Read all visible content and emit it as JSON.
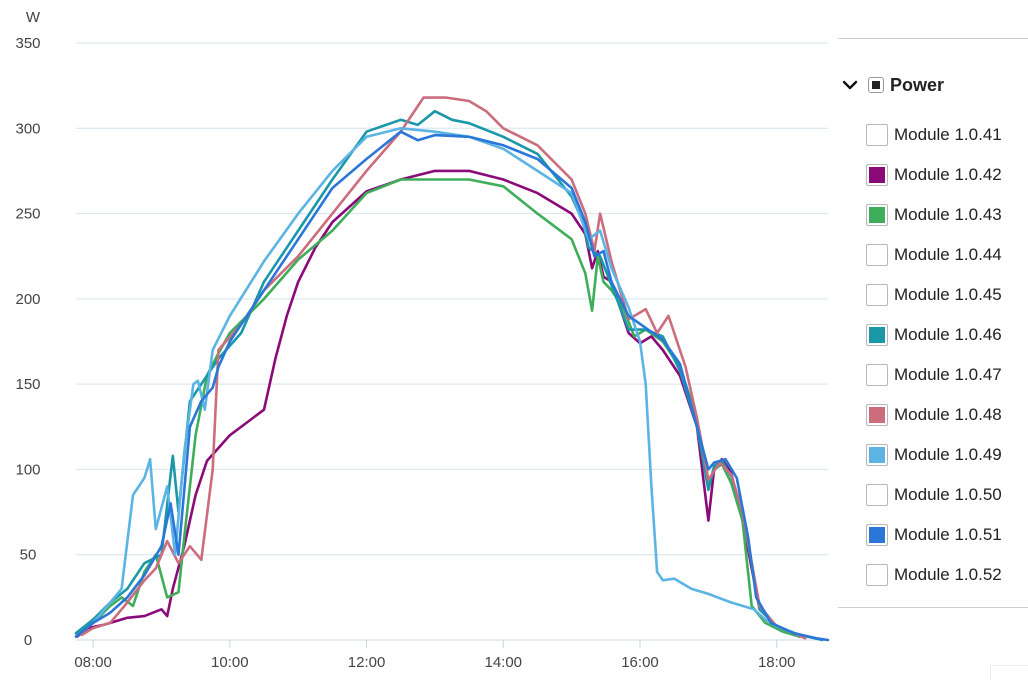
{
  "chart_data": {
    "type": "line",
    "ylabel": "W",
    "ylim": [
      0,
      350
    ],
    "y_ticks": [
      "0",
      "50",
      "100",
      "150",
      "200",
      "250",
      "300",
      "350"
    ],
    "xlim": [
      "07:45",
      "18:45"
    ],
    "x_ticks": [
      "08:00",
      "10:00",
      "12:00",
      "14:00",
      "16:00",
      "18:00"
    ],
    "grid": "horizontal",
    "legend_position": "right",
    "series": [
      {
        "name": "Module 1.0.42",
        "color": "#8b0a7a",
        "points": [
          [
            "07:46",
            2
          ],
          [
            "07:55",
            7
          ],
          [
            "08:10",
            9
          ],
          [
            "08:30",
            13
          ],
          [
            "08:45",
            14
          ],
          [
            "09:00",
            18
          ],
          [
            "09:05",
            14
          ],
          [
            "09:10",
            30
          ],
          [
            "09:20",
            55
          ],
          [
            "09:30",
            85
          ],
          [
            "09:40",
            105
          ],
          [
            "10:00",
            120
          ],
          [
            "10:30",
            135
          ],
          [
            "10:40",
            165
          ],
          [
            "10:50",
            190
          ],
          [
            "11:00",
            210
          ],
          [
            "11:15",
            230
          ],
          [
            "11:30",
            245
          ],
          [
            "12:00",
            263
          ],
          [
            "12:30",
            270
          ],
          [
            "13:00",
            275
          ],
          [
            "13:30",
            275
          ],
          [
            "14:00",
            270
          ],
          [
            "14:30",
            262
          ],
          [
            "15:00",
            250
          ],
          [
            "15:12",
            238
          ],
          [
            "15:18",
            218
          ],
          [
            "15:23",
            228
          ],
          [
            "15:28",
            213
          ],
          [
            "15:35",
            210
          ],
          [
            "15:50",
            180
          ],
          [
            "16:00",
            174
          ],
          [
            "16:10",
            178
          ],
          [
            "16:20",
            170
          ],
          [
            "16:35",
            155
          ],
          [
            "16:50",
            125
          ],
          [
            "17:00",
            70
          ],
          [
            "17:05",
            100
          ],
          [
            "17:12",
            106
          ],
          [
            "17:20",
            98
          ],
          [
            "17:30",
            70
          ],
          [
            "17:45",
            18
          ],
          [
            "18:00",
            8
          ],
          [
            "18:15",
            4
          ],
          [
            "18:20",
            2
          ]
        ]
      },
      {
        "name": "Module 1.0.43",
        "color": "#3fae5a",
        "points": [
          [
            "07:45",
            4
          ],
          [
            "08:00",
            10
          ],
          [
            "08:15",
            20
          ],
          [
            "08:25",
            25
          ],
          [
            "08:35",
            20
          ],
          [
            "08:45",
            40
          ],
          [
            "08:55",
            50
          ],
          [
            "09:05",
            25
          ],
          [
            "09:15",
            28
          ],
          [
            "09:20",
            60
          ],
          [
            "09:30",
            120
          ],
          [
            "09:40",
            155
          ],
          [
            "09:50",
            168
          ],
          [
            "10:00",
            180
          ],
          [
            "10:30",
            200
          ],
          [
            "11:00",
            223
          ],
          [
            "11:30",
            240
          ],
          [
            "12:00",
            262
          ],
          [
            "12:30",
            270
          ],
          [
            "13:00",
            270
          ],
          [
            "13:30",
            270
          ],
          [
            "14:00",
            266
          ],
          [
            "14:30",
            250
          ],
          [
            "15:00",
            235
          ],
          [
            "15:12",
            215
          ],
          [
            "15:18",
            193
          ],
          [
            "15:23",
            225
          ],
          [
            "15:28",
            210
          ],
          [
            "15:35",
            205
          ],
          [
            "15:45",
            195
          ],
          [
            "15:55",
            178
          ],
          [
            "16:05",
            182
          ],
          [
            "16:20",
            175
          ],
          [
            "16:35",
            160
          ],
          [
            "16:50",
            130
          ],
          [
            "17:00",
            90
          ],
          [
            "17:05",
            100
          ],
          [
            "17:12",
            103
          ],
          [
            "17:20",
            92
          ],
          [
            "17:30",
            70
          ],
          [
            "17:38",
            20
          ],
          [
            "17:50",
            10
          ],
          [
            "18:05",
            5
          ],
          [
            "18:20",
            2
          ]
        ]
      },
      {
        "name": "Module 1.0.46",
        "color": "#1a98a8",
        "points": [
          [
            "07:45",
            4
          ],
          [
            "08:00",
            12
          ],
          [
            "08:15",
            22
          ],
          [
            "08:30",
            30
          ],
          [
            "08:45",
            45
          ],
          [
            "09:00",
            50
          ],
          [
            "09:10",
            108
          ],
          [
            "09:15",
            75
          ],
          [
            "09:25",
            140
          ],
          [
            "09:35",
            150
          ],
          [
            "09:50",
            165
          ],
          [
            "10:10",
            180
          ],
          [
            "10:30",
            210
          ],
          [
            "11:00",
            240
          ],
          [
            "11:30",
            270
          ],
          [
            "12:00",
            298
          ],
          [
            "12:30",
            305
          ],
          [
            "12:45",
            302
          ],
          [
            "13:00",
            310
          ],
          [
            "13:15",
            305
          ],
          [
            "13:30",
            303
          ],
          [
            "14:00",
            295
          ],
          [
            "14:30",
            285
          ],
          [
            "15:00",
            260
          ],
          [
            "15:10",
            245
          ],
          [
            "15:15",
            230
          ],
          [
            "15:25",
            225
          ],
          [
            "15:35",
            208
          ],
          [
            "15:50",
            182
          ],
          [
            "16:05",
            182
          ],
          [
            "16:20",
            178
          ],
          [
            "16:35",
            158
          ],
          [
            "16:50",
            125
          ],
          [
            "17:00",
            88
          ],
          [
            "17:05",
            102
          ],
          [
            "17:12",
            105
          ],
          [
            "17:20",
            96
          ],
          [
            "17:30",
            75
          ],
          [
            "17:45",
            18
          ],
          [
            "18:00",
            8
          ],
          [
            "18:20",
            3
          ],
          [
            "18:40",
            0
          ]
        ]
      },
      {
        "name": "Module 1.0.48",
        "color": "#cc6d7e",
        "points": [
          [
            "07:50",
            3
          ],
          [
            "08:00",
            7
          ],
          [
            "08:15",
            10
          ],
          [
            "08:30",
            22
          ],
          [
            "08:45",
            35
          ],
          [
            "08:55",
            42
          ],
          [
            "09:05",
            58
          ],
          [
            "09:15",
            45
          ],
          [
            "09:25",
            55
          ],
          [
            "09:35",
            47
          ],
          [
            "09:45",
            100
          ],
          [
            "09:50",
            170
          ],
          [
            "10:10",
            185
          ],
          [
            "10:30",
            205
          ],
          [
            "11:00",
            225
          ],
          [
            "11:30",
            250
          ],
          [
            "12:00",
            275
          ],
          [
            "12:30",
            298
          ],
          [
            "12:50",
            318
          ],
          [
            "13:10",
            318
          ],
          [
            "13:30",
            316
          ],
          [
            "13:45",
            310
          ],
          [
            "14:00",
            300
          ],
          [
            "14:30",
            290
          ],
          [
            "15:00",
            270
          ],
          [
            "15:12",
            250
          ],
          [
            "15:20",
            228
          ],
          [
            "15:25",
            250
          ],
          [
            "15:35",
            222
          ],
          [
            "15:50",
            188
          ],
          [
            "16:05",
            194
          ],
          [
            "16:15",
            180
          ],
          [
            "16:25",
            190
          ],
          [
            "16:40",
            160
          ],
          [
            "16:50",
            130
          ],
          [
            "17:00",
            94
          ],
          [
            "17:10",
            104
          ],
          [
            "17:20",
            97
          ],
          [
            "17:30",
            75
          ],
          [
            "17:45",
            20
          ],
          [
            "18:00",
            8
          ],
          [
            "18:15",
            4
          ],
          [
            "18:25",
            1
          ]
        ]
      },
      {
        "name": "Module 1.0.49",
        "color": "#5bb4e3",
        "points": [
          [
            "07:45",
            2
          ],
          [
            "08:00",
            10
          ],
          [
            "08:15",
            22
          ],
          [
            "08:25",
            30
          ],
          [
            "08:35",
            85
          ],
          [
            "08:45",
            95
          ],
          [
            "08:50",
            106
          ],
          [
            "08:55",
            65
          ],
          [
            "09:05",
            90
          ],
          [
            "09:12",
            50
          ],
          [
            "09:20",
            110
          ],
          [
            "09:28",
            150
          ],
          [
            "09:32",
            152
          ],
          [
            "09:38",
            135
          ],
          [
            "09:45",
            170
          ],
          [
            "10:00",
            190
          ],
          [
            "10:30",
            222
          ],
          [
            "11:00",
            250
          ],
          [
            "11:30",
            275
          ],
          [
            "12:00",
            295
          ],
          [
            "12:30",
            300
          ],
          [
            "13:00",
            298
          ],
          [
            "13:30",
            295
          ],
          [
            "14:00",
            288
          ],
          [
            "14:30",
            275
          ],
          [
            "15:00",
            262
          ],
          [
            "15:15",
            235
          ],
          [
            "15:25",
            240
          ],
          [
            "15:35",
            218
          ],
          [
            "15:50",
            195
          ],
          [
            "16:00",
            175
          ],
          [
            "16:05",
            150
          ],
          [
            "16:10",
            90
          ],
          [
            "16:15",
            40
          ],
          [
            "16:20",
            35
          ],
          [
            "16:30",
            36
          ],
          [
            "16:45",
            30
          ],
          [
            "17:00",
            27
          ],
          [
            "17:20",
            22
          ],
          [
            "17:40",
            18
          ],
          [
            "17:50",
            12
          ],
          [
            "18:00",
            8
          ],
          [
            "18:20",
            3
          ]
        ]
      },
      {
        "name": "Module 1.0.51",
        "color": "#2a77d8",
        "points": [
          [
            "07:45",
            2
          ],
          [
            "08:00",
            10
          ],
          [
            "08:15",
            16
          ],
          [
            "08:30",
            25
          ],
          [
            "08:45",
            38
          ],
          [
            "09:00",
            55
          ],
          [
            "09:08",
            80
          ],
          [
            "09:15",
            50
          ],
          [
            "09:25",
            125
          ],
          [
            "09:35",
            140
          ],
          [
            "09:45",
            148
          ],
          [
            "09:50",
            160
          ],
          [
            "10:00",
            175
          ],
          [
            "10:30",
            205
          ],
          [
            "11:00",
            235
          ],
          [
            "11:30",
            265
          ],
          [
            "12:00",
            282
          ],
          [
            "12:30",
            298
          ],
          [
            "12:45",
            293
          ],
          [
            "13:00",
            296
          ],
          [
            "13:30",
            295
          ],
          [
            "14:00",
            290
          ],
          [
            "14:30",
            282
          ],
          [
            "15:00",
            265
          ],
          [
            "15:12",
            245
          ],
          [
            "15:20",
            225
          ],
          [
            "15:28",
            228
          ],
          [
            "15:35",
            210
          ],
          [
            "15:50",
            190
          ],
          [
            "16:05",
            183
          ],
          [
            "16:20",
            176
          ],
          [
            "16:35",
            162
          ],
          [
            "16:50",
            125
          ],
          [
            "17:00",
            100
          ],
          [
            "17:05",
            104
          ],
          [
            "17:15",
            106
          ],
          [
            "17:25",
            95
          ],
          [
            "17:35",
            60
          ],
          [
            "17:42",
            25
          ],
          [
            "17:55",
            10
          ],
          [
            "18:15",
            4
          ],
          [
            "18:35",
            1
          ],
          [
            "18:45",
            0
          ]
        ]
      }
    ]
  },
  "legend": {
    "group_label": "Power",
    "items": [
      {
        "label": "Module 1.0.41",
        "color": ""
      },
      {
        "label": "Module 1.0.42",
        "color": "#8b0a7a"
      },
      {
        "label": "Module 1.0.43",
        "color": "#3fae5a"
      },
      {
        "label": "Module 1.0.44",
        "color": ""
      },
      {
        "label": "Module 1.0.45",
        "color": ""
      },
      {
        "label": "Module 1.0.46",
        "color": "#1a98a8"
      },
      {
        "label": "Module 1.0.47",
        "color": ""
      },
      {
        "label": "Module 1.0.48",
        "color": "#cc6d7e"
      },
      {
        "label": "Module 1.0.49",
        "color": "#5bb4e3"
      },
      {
        "label": "Module 1.0.50",
        "color": ""
      },
      {
        "label": "Module 1.0.51",
        "color": "#2a77d8"
      },
      {
        "label": "Module 1.0.52",
        "color": ""
      }
    ]
  }
}
